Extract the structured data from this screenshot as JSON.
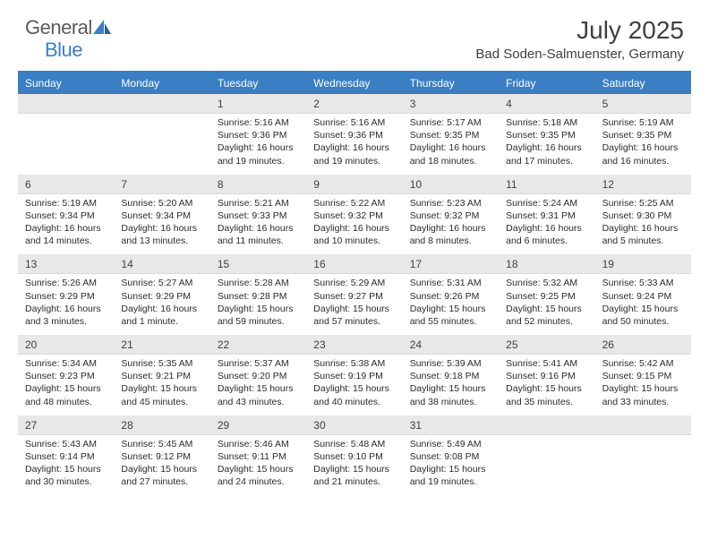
{
  "brand": {
    "text1": "General",
    "text2": "Blue"
  },
  "title": "July 2025",
  "location": "Bad Soden-Salmuenster, Germany",
  "colors": {
    "header_blue": "#3a7fc4",
    "daynum_bg": "#e8e8e8",
    "text": "#3f3f3f",
    "body_text": "#2b2b2b"
  },
  "weekdays": [
    "Sunday",
    "Monday",
    "Tuesday",
    "Wednesday",
    "Thursday",
    "Friday",
    "Saturday"
  ],
  "weeks": [
    [
      {
        "n": "",
        "sr": "",
        "ss": "",
        "dl": ""
      },
      {
        "n": "",
        "sr": "",
        "ss": "",
        "dl": ""
      },
      {
        "n": "1",
        "sr": "Sunrise: 5:16 AM",
        "ss": "Sunset: 9:36 PM",
        "dl": "Daylight: 16 hours and 19 minutes."
      },
      {
        "n": "2",
        "sr": "Sunrise: 5:16 AM",
        "ss": "Sunset: 9:36 PM",
        "dl": "Daylight: 16 hours and 19 minutes."
      },
      {
        "n": "3",
        "sr": "Sunrise: 5:17 AM",
        "ss": "Sunset: 9:35 PM",
        "dl": "Daylight: 16 hours and 18 minutes."
      },
      {
        "n": "4",
        "sr": "Sunrise: 5:18 AM",
        "ss": "Sunset: 9:35 PM",
        "dl": "Daylight: 16 hours and 17 minutes."
      },
      {
        "n": "5",
        "sr": "Sunrise: 5:19 AM",
        "ss": "Sunset: 9:35 PM",
        "dl": "Daylight: 16 hours and 16 minutes."
      }
    ],
    [
      {
        "n": "6",
        "sr": "Sunrise: 5:19 AM",
        "ss": "Sunset: 9:34 PM",
        "dl": "Daylight: 16 hours and 14 minutes."
      },
      {
        "n": "7",
        "sr": "Sunrise: 5:20 AM",
        "ss": "Sunset: 9:34 PM",
        "dl": "Daylight: 16 hours and 13 minutes."
      },
      {
        "n": "8",
        "sr": "Sunrise: 5:21 AM",
        "ss": "Sunset: 9:33 PM",
        "dl": "Daylight: 16 hours and 11 minutes."
      },
      {
        "n": "9",
        "sr": "Sunrise: 5:22 AM",
        "ss": "Sunset: 9:32 PM",
        "dl": "Daylight: 16 hours and 10 minutes."
      },
      {
        "n": "10",
        "sr": "Sunrise: 5:23 AM",
        "ss": "Sunset: 9:32 PM",
        "dl": "Daylight: 16 hours and 8 minutes."
      },
      {
        "n": "11",
        "sr": "Sunrise: 5:24 AM",
        "ss": "Sunset: 9:31 PM",
        "dl": "Daylight: 16 hours and 6 minutes."
      },
      {
        "n": "12",
        "sr": "Sunrise: 5:25 AM",
        "ss": "Sunset: 9:30 PM",
        "dl": "Daylight: 16 hours and 5 minutes."
      }
    ],
    [
      {
        "n": "13",
        "sr": "Sunrise: 5:26 AM",
        "ss": "Sunset: 9:29 PM",
        "dl": "Daylight: 16 hours and 3 minutes."
      },
      {
        "n": "14",
        "sr": "Sunrise: 5:27 AM",
        "ss": "Sunset: 9:29 PM",
        "dl": "Daylight: 16 hours and 1 minute."
      },
      {
        "n": "15",
        "sr": "Sunrise: 5:28 AM",
        "ss": "Sunset: 9:28 PM",
        "dl": "Daylight: 15 hours and 59 minutes."
      },
      {
        "n": "16",
        "sr": "Sunrise: 5:29 AM",
        "ss": "Sunset: 9:27 PM",
        "dl": "Daylight: 15 hours and 57 minutes."
      },
      {
        "n": "17",
        "sr": "Sunrise: 5:31 AM",
        "ss": "Sunset: 9:26 PM",
        "dl": "Daylight: 15 hours and 55 minutes."
      },
      {
        "n": "18",
        "sr": "Sunrise: 5:32 AM",
        "ss": "Sunset: 9:25 PM",
        "dl": "Daylight: 15 hours and 52 minutes."
      },
      {
        "n": "19",
        "sr": "Sunrise: 5:33 AM",
        "ss": "Sunset: 9:24 PM",
        "dl": "Daylight: 15 hours and 50 minutes."
      }
    ],
    [
      {
        "n": "20",
        "sr": "Sunrise: 5:34 AM",
        "ss": "Sunset: 9:23 PM",
        "dl": "Daylight: 15 hours and 48 minutes."
      },
      {
        "n": "21",
        "sr": "Sunrise: 5:35 AM",
        "ss": "Sunset: 9:21 PM",
        "dl": "Daylight: 15 hours and 45 minutes."
      },
      {
        "n": "22",
        "sr": "Sunrise: 5:37 AM",
        "ss": "Sunset: 9:20 PM",
        "dl": "Daylight: 15 hours and 43 minutes."
      },
      {
        "n": "23",
        "sr": "Sunrise: 5:38 AM",
        "ss": "Sunset: 9:19 PM",
        "dl": "Daylight: 15 hours and 40 minutes."
      },
      {
        "n": "24",
        "sr": "Sunrise: 5:39 AM",
        "ss": "Sunset: 9:18 PM",
        "dl": "Daylight: 15 hours and 38 minutes."
      },
      {
        "n": "25",
        "sr": "Sunrise: 5:41 AM",
        "ss": "Sunset: 9:16 PM",
        "dl": "Daylight: 15 hours and 35 minutes."
      },
      {
        "n": "26",
        "sr": "Sunrise: 5:42 AM",
        "ss": "Sunset: 9:15 PM",
        "dl": "Daylight: 15 hours and 33 minutes."
      }
    ],
    [
      {
        "n": "27",
        "sr": "Sunrise: 5:43 AM",
        "ss": "Sunset: 9:14 PM",
        "dl": "Daylight: 15 hours and 30 minutes."
      },
      {
        "n": "28",
        "sr": "Sunrise: 5:45 AM",
        "ss": "Sunset: 9:12 PM",
        "dl": "Daylight: 15 hours and 27 minutes."
      },
      {
        "n": "29",
        "sr": "Sunrise: 5:46 AM",
        "ss": "Sunset: 9:11 PM",
        "dl": "Daylight: 15 hours and 24 minutes."
      },
      {
        "n": "30",
        "sr": "Sunrise: 5:48 AM",
        "ss": "Sunset: 9:10 PM",
        "dl": "Daylight: 15 hours and 21 minutes."
      },
      {
        "n": "31",
        "sr": "Sunrise: 5:49 AM",
        "ss": "Sunset: 9:08 PM",
        "dl": "Daylight: 15 hours and 19 minutes."
      },
      {
        "n": "",
        "sr": "",
        "ss": "",
        "dl": ""
      },
      {
        "n": "",
        "sr": "",
        "ss": "",
        "dl": ""
      }
    ]
  ]
}
